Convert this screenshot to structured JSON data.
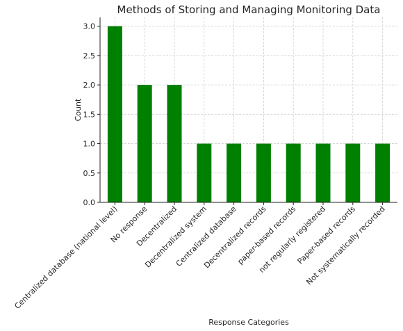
{
  "colors": {
    "bar": "#008000",
    "grid": "#cfcfcf",
    "axis": "#222222",
    "text": "#262626"
  },
  "chart_data": {
    "type": "bar",
    "title": "Methods of Storing and Managing Monitoring Data",
    "xlabel": "Response Categories",
    "ylabel": "Count",
    "ylim": [
      0,
      3.15
    ],
    "yticks": [
      "0.0",
      "0.5",
      "1.0",
      "1.5",
      "2.0",
      "2.5",
      "3.0"
    ],
    "grid": true,
    "categories": [
      "Centralized database (national level)",
      "No response",
      "Decentralized",
      "Decentralized system",
      "Centralized database",
      "Decentralized records",
      "paper-based records",
      "not regularly registered",
      "Paper-based records",
      "Not systematically recorded"
    ],
    "values": [
      3,
      2,
      2,
      1,
      1,
      1,
      1,
      1,
      1,
      1
    ]
  }
}
